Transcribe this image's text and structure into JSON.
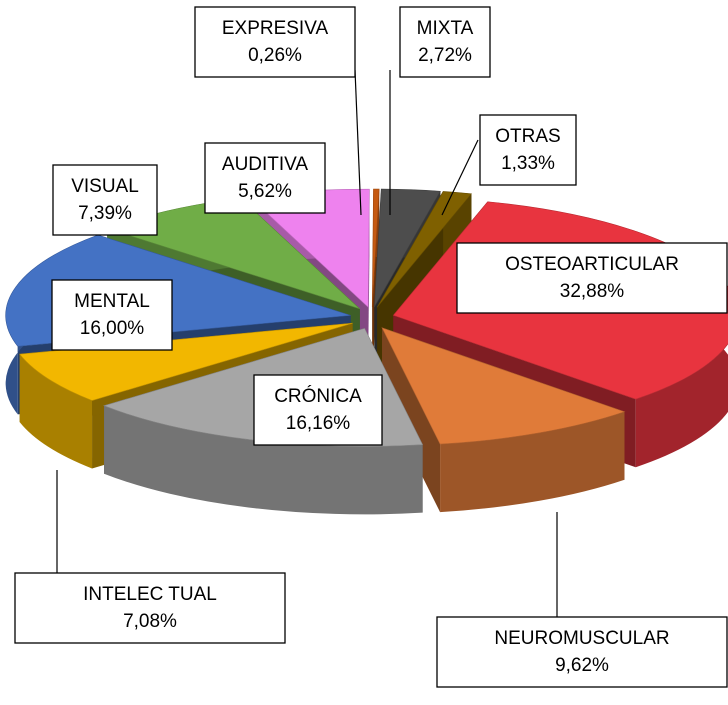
{
  "chart_data": {
    "type": "pie",
    "categories": [
      "MIXTA",
      "OTRAS",
      "OSTEOARTICULAR",
      "NEUROMUSCULAR",
      "CRÓNICA",
      "INTELEC TUAL",
      "MENTAL",
      "VISUAL",
      "AUDITIVA",
      "EXPRESIVA"
    ],
    "values": [
      2.72,
      1.33,
      32.88,
      9.62,
      16.16,
      7.08,
      16.0,
      7.39,
      5.62,
      0.26
    ],
    "value_labels": [
      "2,72%",
      "1,33%",
      "32,88%",
      "9,62%",
      "16,16%",
      "7,08%",
      "16,00%",
      "7,39%",
      "5,62%",
      "0,26%"
    ],
    "colors": [
      "#4d4d4d",
      "#7f6000",
      "#e8343f",
      "#e07b39",
      "#a6a6a6",
      "#f2b700",
      "#4472c4",
      "#70ad47",
      "#ee82ee",
      "#c55a11"
    ]
  }
}
